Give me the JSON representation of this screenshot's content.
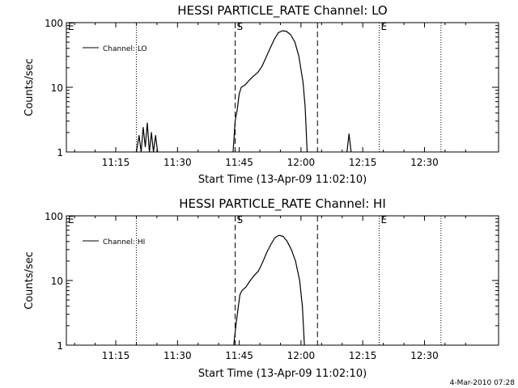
{
  "chart_data": [
    {
      "type": "line",
      "title": "HESSI PARTICLE_RATE Channel: LO",
      "xlabel": "Start Time (13-Apr-09 11:02:10)",
      "ylabel": "Counts/sec",
      "y_scale": "log",
      "xlim": [
        "11:03",
        "12:48"
      ],
      "ylim": [
        1,
        100
      ],
      "x_tick_labels": [
        "11:15",
        "11:30",
        "11:45",
        "12:00",
        "12:15",
        "12:30"
      ],
      "y_tick_labels": [
        "1",
        "10",
        "100"
      ],
      "legend": {
        "label": "Channel: LO",
        "position": "top-left"
      },
      "markers": [
        {
          "time": "11:03",
          "style": "dotted",
          "label": "E"
        },
        {
          "time": "11:20",
          "style": "dotted",
          "label": ""
        },
        {
          "time": "11:44",
          "style": "dashed",
          "label": "S"
        },
        {
          "time": "12:04",
          "style": "dashed",
          "label": ""
        },
        {
          "time": "12:19",
          "style": "dotted",
          "label": "E"
        },
        {
          "time": "12:34",
          "style": "dotted",
          "label": ""
        }
      ],
      "series": [
        {
          "name": "Channel: LO",
          "segments": [
            [
              [
                "11:20:00",
                1
              ],
              [
                "11:20:40",
                1.8
              ],
              [
                "11:21:10",
                1
              ],
              [
                "11:21:40",
                2.4
              ],
              [
                "11:22:10",
                1.2
              ],
              [
                "11:22:40",
                2.8
              ],
              [
                "11:23:10",
                1
              ],
              [
                "11:23:40",
                2.0
              ],
              [
                "11:24:10",
                1
              ],
              [
                "11:24:40",
                1.8
              ],
              [
                "11:25:10",
                1
              ]
            ],
            [
              [
                "11:43:30",
                1
              ],
              [
                "11:44:00",
                3
              ],
              [
                "11:44:30",
                4.5
              ],
              [
                "11:45:00",
                8
              ],
              [
                "11:45:30",
                10
              ],
              [
                "11:46:30",
                11
              ],
              [
                "11:47:30",
                13
              ],
              [
                "11:48:30",
                15
              ],
              [
                "11:49:30",
                17
              ],
              [
                "11:50:30",
                21
              ],
              [
                "11:51:30",
                29
              ],
              [
                "11:52:30",
                40
              ],
              [
                "11:53:30",
                55
              ],
              [
                "11:54:30",
                70
              ],
              [
                "11:55:30",
                75
              ],
              [
                "11:56:30",
                73
              ],
              [
                "11:57:30",
                65
              ],
              [
                "11:58:30",
                50
              ],
              [
                "11:59:30",
                30
              ],
              [
                "12:00:30",
                12
              ],
              [
                "12:01:00",
                5
              ],
              [
                "12:01:30",
                1
              ]
            ],
            [
              [
                "12:11:10",
                1
              ],
              [
                "12:11:40",
                1.9
              ],
              [
                "12:12:10",
                1
              ]
            ]
          ]
        }
      ]
    },
    {
      "type": "line",
      "title": "HESSI PARTICLE_RATE Channel: HI",
      "xlabel": "Start Time (13-Apr-09 11:02:10)",
      "ylabel": "Counts/sec",
      "y_scale": "log",
      "xlim": [
        "11:03",
        "12:48"
      ],
      "ylim": [
        1,
        100
      ],
      "x_tick_labels": [
        "11:15",
        "11:30",
        "11:45",
        "12:00",
        "12:15",
        "12:30"
      ],
      "y_tick_labels": [
        "1",
        "10",
        "100"
      ],
      "legend": {
        "label": "Channel: HI",
        "position": "top-left"
      },
      "markers": [
        {
          "time": "11:03",
          "style": "dotted",
          "label": "E"
        },
        {
          "time": "11:20",
          "style": "dotted",
          "label": ""
        },
        {
          "time": "11:44",
          "style": "dashed",
          "label": "S"
        },
        {
          "time": "12:04",
          "style": "dashed",
          "label": ""
        },
        {
          "time": "12:19",
          "style": "dotted",
          "label": "E"
        },
        {
          "time": "12:34",
          "style": "dotted",
          "label": ""
        }
      ],
      "series": [
        {
          "name": "Channel: HI",
          "segments": [
            [
              [
                "11:43:40",
                1
              ],
              [
                "11:44:10",
                2
              ],
              [
                "11:44:40",
                3.5
              ],
              [
                "11:45:10",
                6
              ],
              [
                "11:45:40",
                7
              ],
              [
                "11:46:40",
                8
              ],
              [
                "11:47:40",
                10
              ],
              [
                "11:48:40",
                12
              ],
              [
                "11:49:40",
                14
              ],
              [
                "11:50:40",
                19
              ],
              [
                "11:51:40",
                27
              ],
              [
                "11:52:40",
                36
              ],
              [
                "11:53:40",
                46
              ],
              [
                "11:54:40",
                50
              ],
              [
                "11:55:40",
                48
              ],
              [
                "11:56:40",
                40
              ],
              [
                "11:57:40",
                30
              ],
              [
                "11:58:40",
                20
              ],
              [
                "11:59:40",
                10
              ],
              [
                "12:00:20",
                4
              ],
              [
                "12:00:50",
                1
              ]
            ]
          ]
        }
      ]
    }
  ],
  "footer": {
    "timestamp": "4-Mar-2010 07:28"
  }
}
